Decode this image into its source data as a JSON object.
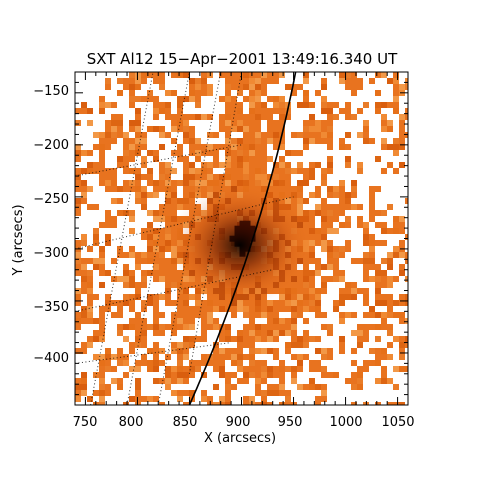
{
  "title": "SXT Al12 15−Apr−2001 13:49:16.340 UT",
  "axes": {
    "xlabel": "X (arcsecs)",
    "ylabel": "Y (arcsecs)",
    "xlim": [
      740,
      1060
    ],
    "ylim": [
      -450,
      -130
    ],
    "x_ticks": [
      "750",
      "800",
      "850",
      "900",
      "950",
      "1000",
      "1050"
    ],
    "y_ticks": [
      "−150",
      "−200",
      "−250",
      "−300",
      "−350",
      "−400"
    ]
  },
  "colors": {
    "background": "#ffffff",
    "frame": "#000000",
    "image_base": "#e8731f",
    "image_dark_core": "#1a0400",
    "missing_data": "#ffffff",
    "limb": "#000000",
    "grid": "#000000"
  },
  "image": {
    "kind": "x-ray solar image",
    "bright_source_center_arcsec": [
      900,
      -295
    ]
  }
}
